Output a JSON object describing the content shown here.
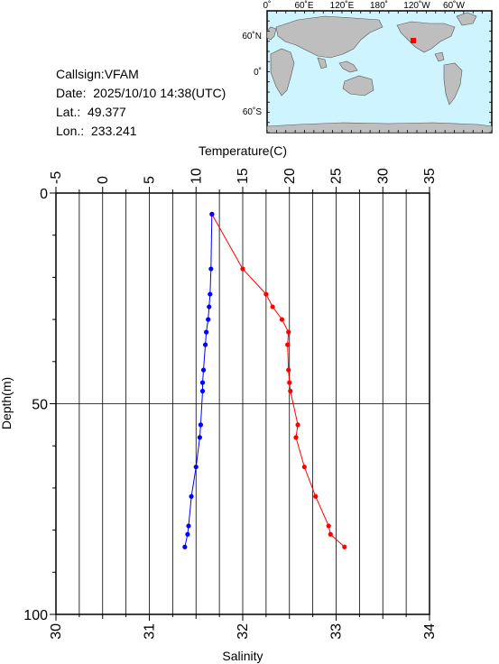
{
  "info": {
    "callsign": "Callsign:VFAM",
    "date": "Date:  2025/10/10 14:38(UTC)",
    "lat": "Lat.:  49.377",
    "lon": "Lon.:  233.241"
  },
  "map": {
    "top_labels": [
      "0˚",
      "60˚E",
      "120˚E",
      "180˚",
      "120˚W",
      "60˚W"
    ],
    "lat_labels": [
      "60˚N",
      "0˚",
      "60˚S"
    ],
    "ocean_color": "#cdf4ff",
    "land_color": "#bebebe",
    "station_marker_color": "#ff0000"
  },
  "chart_data": {
    "type": "line",
    "top_axis_label": "Temperature(C)",
    "bottom_axis_label": "Salinity",
    "y_axis_label": "Depth(m)",
    "temperature_range": [
      -5,
      35
    ],
    "temperature_ticks": [
      "-5",
      "0",
      "5",
      "10",
      "15",
      "20",
      "25",
      "30",
      "35"
    ],
    "salinity_range": [
      30,
      34
    ],
    "salinity_ticks": [
      "30",
      "31",
      "32",
      "33",
      "34"
    ],
    "depth_range": [
      0,
      100
    ],
    "depth_ticks": [
      "0",
      "50",
      "100"
    ],
    "grid": true,
    "series": [
      {
        "axis": "temperature",
        "color": "#ff0000",
        "points": [
          {
            "depth": 5,
            "value": 11.7
          },
          {
            "depth": 18,
            "value": 15.0
          },
          {
            "depth": 24,
            "value": 17.5
          },
          {
            "depth": 27,
            "value": 18.2
          },
          {
            "depth": 30,
            "value": 19.2
          },
          {
            "depth": 33,
            "value": 19.9
          },
          {
            "depth": 36,
            "value": 19.8
          },
          {
            "depth": 42,
            "value": 19.9
          },
          {
            "depth": 45,
            "value": 20.0
          },
          {
            "depth": 47,
            "value": 20.1
          },
          {
            "depth": 55,
            "value": 20.9
          },
          {
            "depth": 58,
            "value": 20.7
          },
          {
            "depth": 65,
            "value": 21.6
          },
          {
            "depth": 72,
            "value": 22.8
          },
          {
            "depth": 79,
            "value": 24.2
          },
          {
            "depth": 81,
            "value": 24.4
          },
          {
            "depth": 84,
            "value": 25.9
          }
        ]
      },
      {
        "axis": "salinity",
        "color": "#0000ff",
        "points": [
          {
            "depth": 5,
            "value": 31.67
          },
          {
            "depth": 18,
            "value": 31.66
          },
          {
            "depth": 24,
            "value": 31.65
          },
          {
            "depth": 27,
            "value": 31.64
          },
          {
            "depth": 30,
            "value": 31.63
          },
          {
            "depth": 33,
            "value": 31.61
          },
          {
            "depth": 36,
            "value": 31.6
          },
          {
            "depth": 42,
            "value": 31.58
          },
          {
            "depth": 45,
            "value": 31.57
          },
          {
            "depth": 47,
            "value": 31.57
          },
          {
            "depth": 55,
            "value": 31.55
          },
          {
            "depth": 58,
            "value": 31.54
          },
          {
            "depth": 65,
            "value": 31.5
          },
          {
            "depth": 72,
            "value": 31.45
          },
          {
            "depth": 79,
            "value": 31.42
          },
          {
            "depth": 81,
            "value": 31.41
          },
          {
            "depth": 84,
            "value": 31.38
          }
        ]
      }
    ]
  }
}
